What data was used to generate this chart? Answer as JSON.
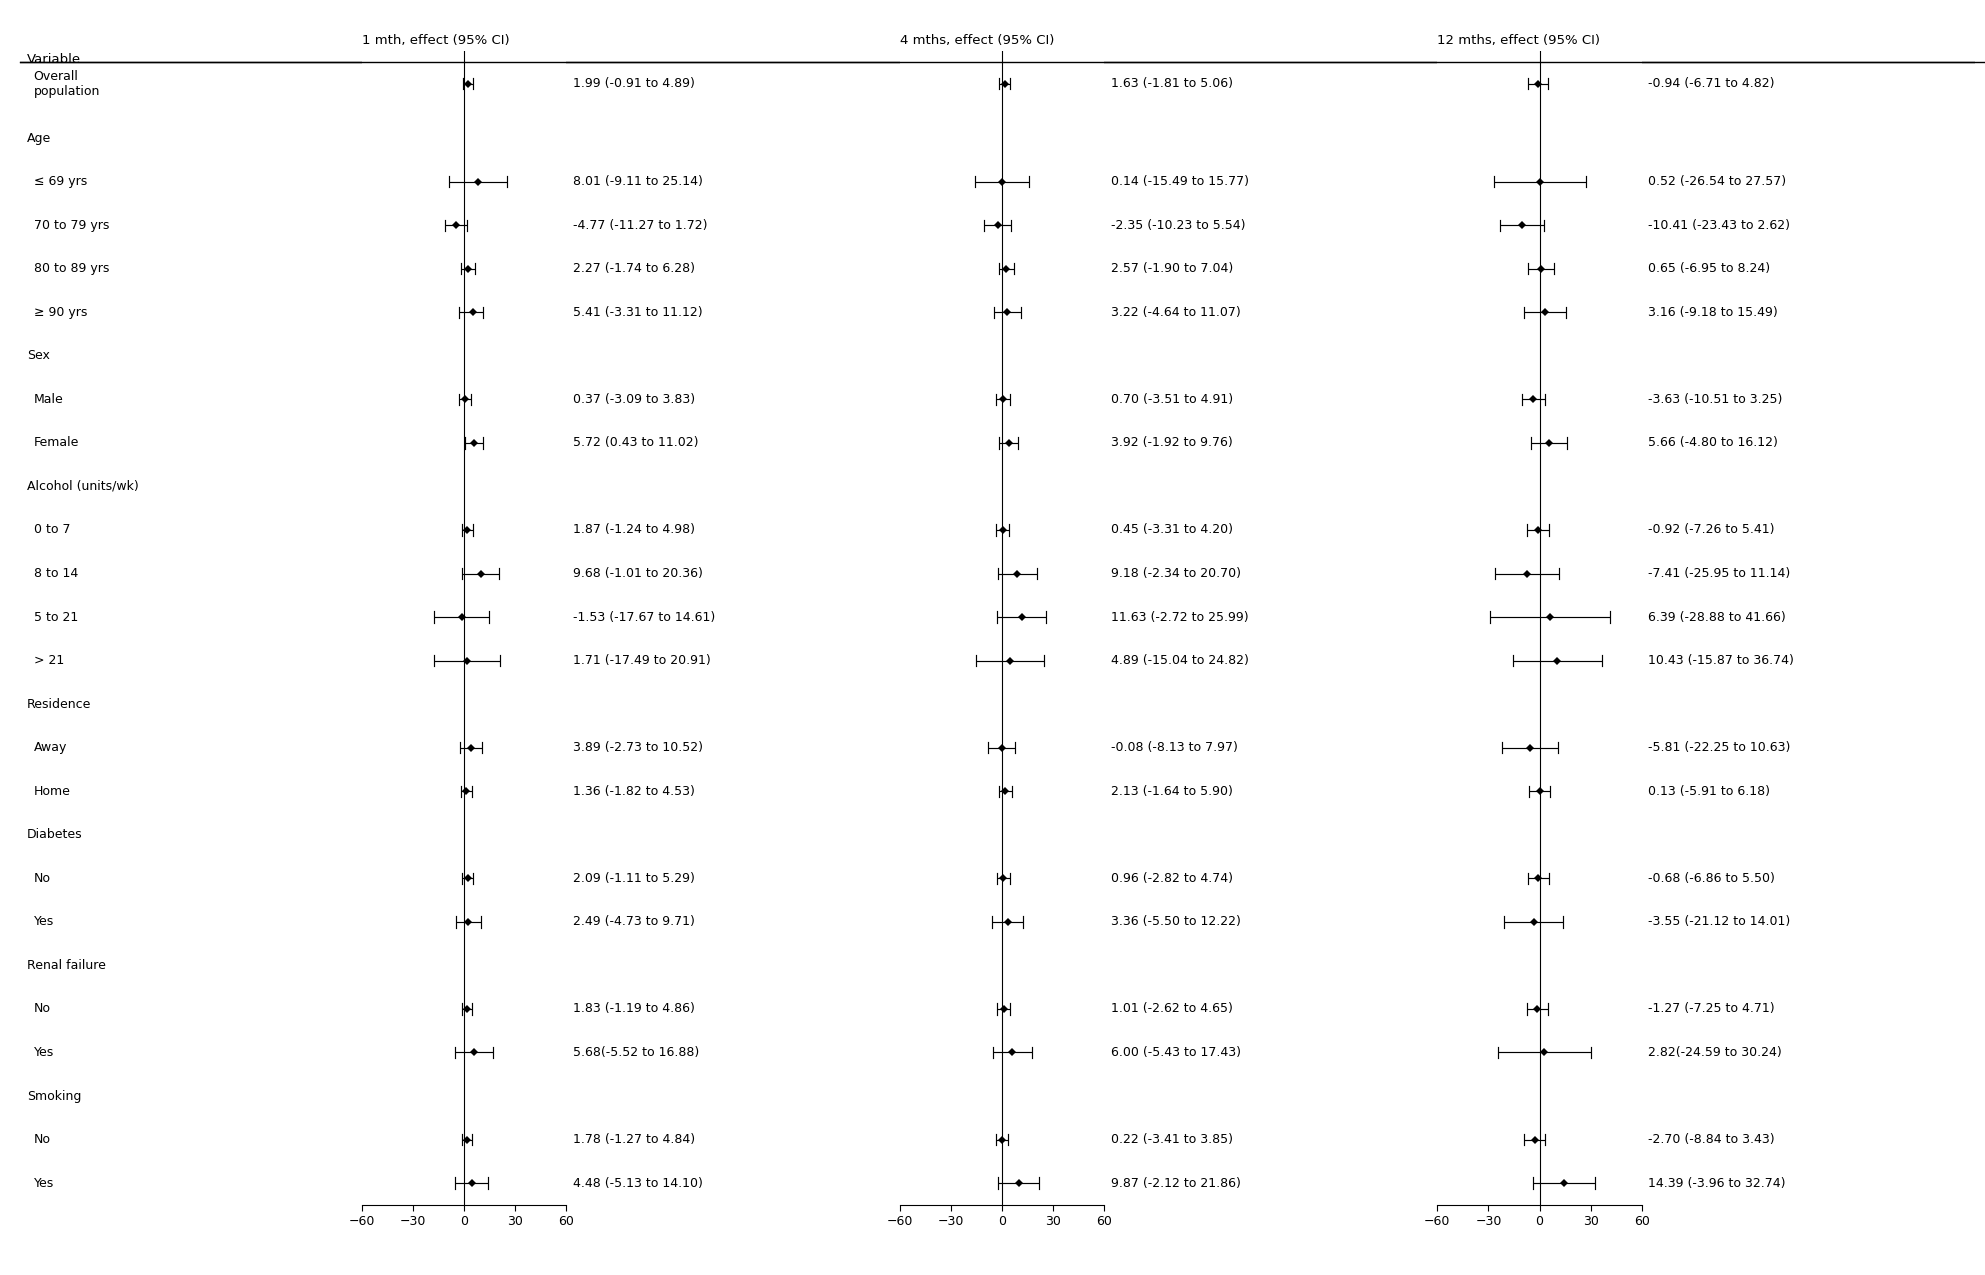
{
  "col_headers": [
    "1 mth, effect (95% CI)",
    "4 mths, effect (95% CI)",
    "12 mths, effect (95% CI)"
  ],
  "row_labels": [
    "Overall\npopulation",
    "Age",
    "≤ 69 yrs",
    "70 to 79 yrs",
    "80 to 89 yrs",
    "≥ 90 yrs",
    "Sex",
    "Male",
    "Female",
    "Alcohol (units/wk)",
    "0 to 7",
    "8 to 14",
    "5 to 21",
    "> 21",
    "Residence",
    "Away",
    "Home",
    "Diabetes",
    "No",
    "Yes",
    "Renal failure",
    "No",
    "Yes",
    "Smoking",
    "No",
    "Yes"
  ],
  "is_header": [
    false,
    true,
    false,
    false,
    false,
    false,
    true,
    false,
    false,
    true,
    false,
    false,
    false,
    false,
    true,
    false,
    false,
    true,
    false,
    false,
    true,
    false,
    false,
    true,
    false,
    false
  ],
  "is_two_line": [
    true,
    false,
    false,
    false,
    false,
    false,
    false,
    false,
    false,
    false,
    false,
    false,
    false,
    false,
    false,
    false,
    false,
    false,
    false,
    false,
    false,
    false,
    false,
    false,
    false,
    false
  ],
  "panel1": {
    "estimates": [
      1.99,
      null,
      8.01,
      -4.77,
      2.27,
      5.41,
      null,
      0.37,
      5.72,
      null,
      1.87,
      9.68,
      -1.53,
      1.71,
      null,
      3.89,
      1.36,
      null,
      2.09,
      2.49,
      null,
      1.83,
      5.68,
      null,
      1.78,
      4.48
    ],
    "ci_low": [
      -0.91,
      null,
      -9.11,
      -11.27,
      -1.74,
      -3.31,
      null,
      -3.09,
      0.43,
      null,
      -1.24,
      -1.01,
      -17.67,
      -17.49,
      null,
      -2.73,
      -1.82,
      null,
      -1.11,
      -4.73,
      null,
      -1.19,
      -5.52,
      null,
      -1.27,
      -5.13
    ],
    "ci_high": [
      4.89,
      null,
      25.14,
      1.72,
      6.28,
      11.12,
      null,
      3.83,
      11.02,
      null,
      4.98,
      20.36,
      14.61,
      20.91,
      null,
      10.52,
      4.53,
      null,
      5.29,
      9.71,
      null,
      4.86,
      16.88,
      null,
      4.84,
      14.1
    ],
    "labels": [
      "1.99 (-0.91 to 4.89)",
      null,
      "8.01 (-9.11 to 25.14)",
      "-4.77 (-11.27 to 1.72)",
      "2.27 (-1.74 to 6.28)",
      "5.41 (-3.31 to 11.12)",
      null,
      "0.37 (-3.09 to 3.83)",
      "5.72 (0.43 to 11.02)",
      null,
      "1.87 (-1.24 to 4.98)",
      "9.68 (-1.01 to 20.36)",
      "-1.53 (-17.67 to 14.61)",
      "1.71 (-17.49 to 20.91)",
      null,
      "3.89 (-2.73 to 10.52)",
      "1.36 (-1.82 to 4.53)",
      null,
      "2.09 (-1.11 to 5.29)",
      "2.49 (-4.73 to 9.71)",
      null,
      "1.83 (-1.19 to 4.86)",
      "5.68(-5.52 to 16.88)",
      null,
      "1.78 (-1.27 to 4.84)",
      "4.48 (-5.13 to 14.10)"
    ]
  },
  "panel2": {
    "estimates": [
      1.63,
      null,
      0.14,
      -2.35,
      2.57,
      3.22,
      null,
      0.7,
      3.92,
      null,
      0.45,
      9.18,
      11.63,
      4.89,
      null,
      -0.08,
      2.13,
      null,
      0.96,
      3.36,
      null,
      1.01,
      6.0,
      null,
      0.22,
      9.87
    ],
    "ci_low": [
      -1.81,
      null,
      -15.49,
      -10.23,
      -1.9,
      -4.64,
      null,
      -3.51,
      -1.92,
      null,
      -3.31,
      -2.34,
      -2.72,
      -15.04,
      null,
      -8.13,
      -1.64,
      null,
      -2.82,
      -5.5,
      null,
      -2.62,
      -5.43,
      null,
      -3.41,
      -2.12
    ],
    "ci_high": [
      5.06,
      null,
      15.77,
      5.54,
      7.04,
      11.07,
      null,
      4.91,
      9.76,
      null,
      4.2,
      20.7,
      25.99,
      24.82,
      null,
      7.97,
      5.9,
      null,
      4.74,
      12.22,
      null,
      4.65,
      17.43,
      null,
      3.85,
      21.86
    ],
    "labels": [
      "1.63 (-1.81 to 5.06)",
      null,
      "0.14 (-15.49 to 15.77)",
      "-2.35 (-10.23 to 5.54)",
      "2.57 (-1.90 to 7.04)",
      "3.22 (-4.64 to 11.07)",
      null,
      "0.70 (-3.51 to 4.91)",
      "3.92 (-1.92 to 9.76)",
      null,
      "0.45 (-3.31 to 4.20)",
      "9.18 (-2.34 to 20.70)",
      "11.63 (-2.72 to 25.99)",
      "4.89 (-15.04 to 24.82)",
      null,
      "-0.08 (-8.13 to 7.97)",
      "2.13 (-1.64 to 5.90)",
      null,
      "0.96 (-2.82 to 4.74)",
      "3.36 (-5.50 to 12.22)",
      null,
      "1.01 (-2.62 to 4.65)",
      "6.00 (-5.43 to 17.43)",
      null,
      "0.22 (-3.41 to 3.85)",
      "9.87 (-2.12 to 21.86)"
    ]
  },
  "panel3": {
    "estimates": [
      -0.94,
      null,
      0.52,
      -10.41,
      0.65,
      3.16,
      null,
      -3.63,
      5.66,
      null,
      -0.92,
      -7.41,
      6.39,
      10.43,
      null,
      -5.81,
      0.13,
      null,
      -0.68,
      -3.55,
      null,
      -1.27,
      2.82,
      null,
      -2.7,
      14.39
    ],
    "ci_low": [
      -6.71,
      null,
      -26.54,
      -23.43,
      -6.95,
      -9.18,
      null,
      -10.51,
      -4.8,
      null,
      -7.26,
      -25.95,
      -28.88,
      -15.87,
      null,
      -22.25,
      -5.91,
      null,
      -6.86,
      -21.12,
      null,
      -7.25,
      -24.59,
      null,
      -8.84,
      -3.96
    ],
    "ci_high": [
      4.82,
      null,
      27.57,
      2.62,
      8.24,
      15.49,
      null,
      3.25,
      16.12,
      null,
      5.41,
      11.14,
      41.66,
      36.74,
      null,
      10.63,
      6.18,
      null,
      5.5,
      14.01,
      null,
      4.71,
      30.24,
      null,
      3.43,
      32.74
    ],
    "labels": [
      "-0.94 (-6.71 to 4.82)",
      null,
      "0.52 (-26.54 to 27.57)",
      "-10.41 (-23.43 to 2.62)",
      "0.65 (-6.95 to 8.24)",
      "3.16 (-9.18 to 15.49)",
      null,
      "-3.63 (-10.51 to 3.25)",
      "5.66 (-4.80 to 16.12)",
      null,
      "-0.92 (-7.26 to 5.41)",
      "-7.41 (-25.95 to 11.14)",
      "6.39 (-28.88 to 41.66)",
      "10.43 (-15.87 to 36.74)",
      null,
      "-5.81 (-22.25 to 10.63)",
      "0.13 (-5.91 to 6.18)",
      null,
      "-0.68 (-6.86 to 5.50)",
      "-3.55 (-21.12 to 14.01)",
      null,
      "-1.27 (-7.25 to 4.71)",
      "2.82(-24.59 to 30.24)",
      null,
      "-2.70 (-8.84 to 3.43)",
      "14.39 (-3.96 to 32.74)"
    ]
  },
  "xlim": [
    -60,
    60
  ],
  "xticks": [
    -60,
    -30,
    0,
    30,
    60
  ],
  "font_size": 9.0,
  "header_font_size": 9.5
}
